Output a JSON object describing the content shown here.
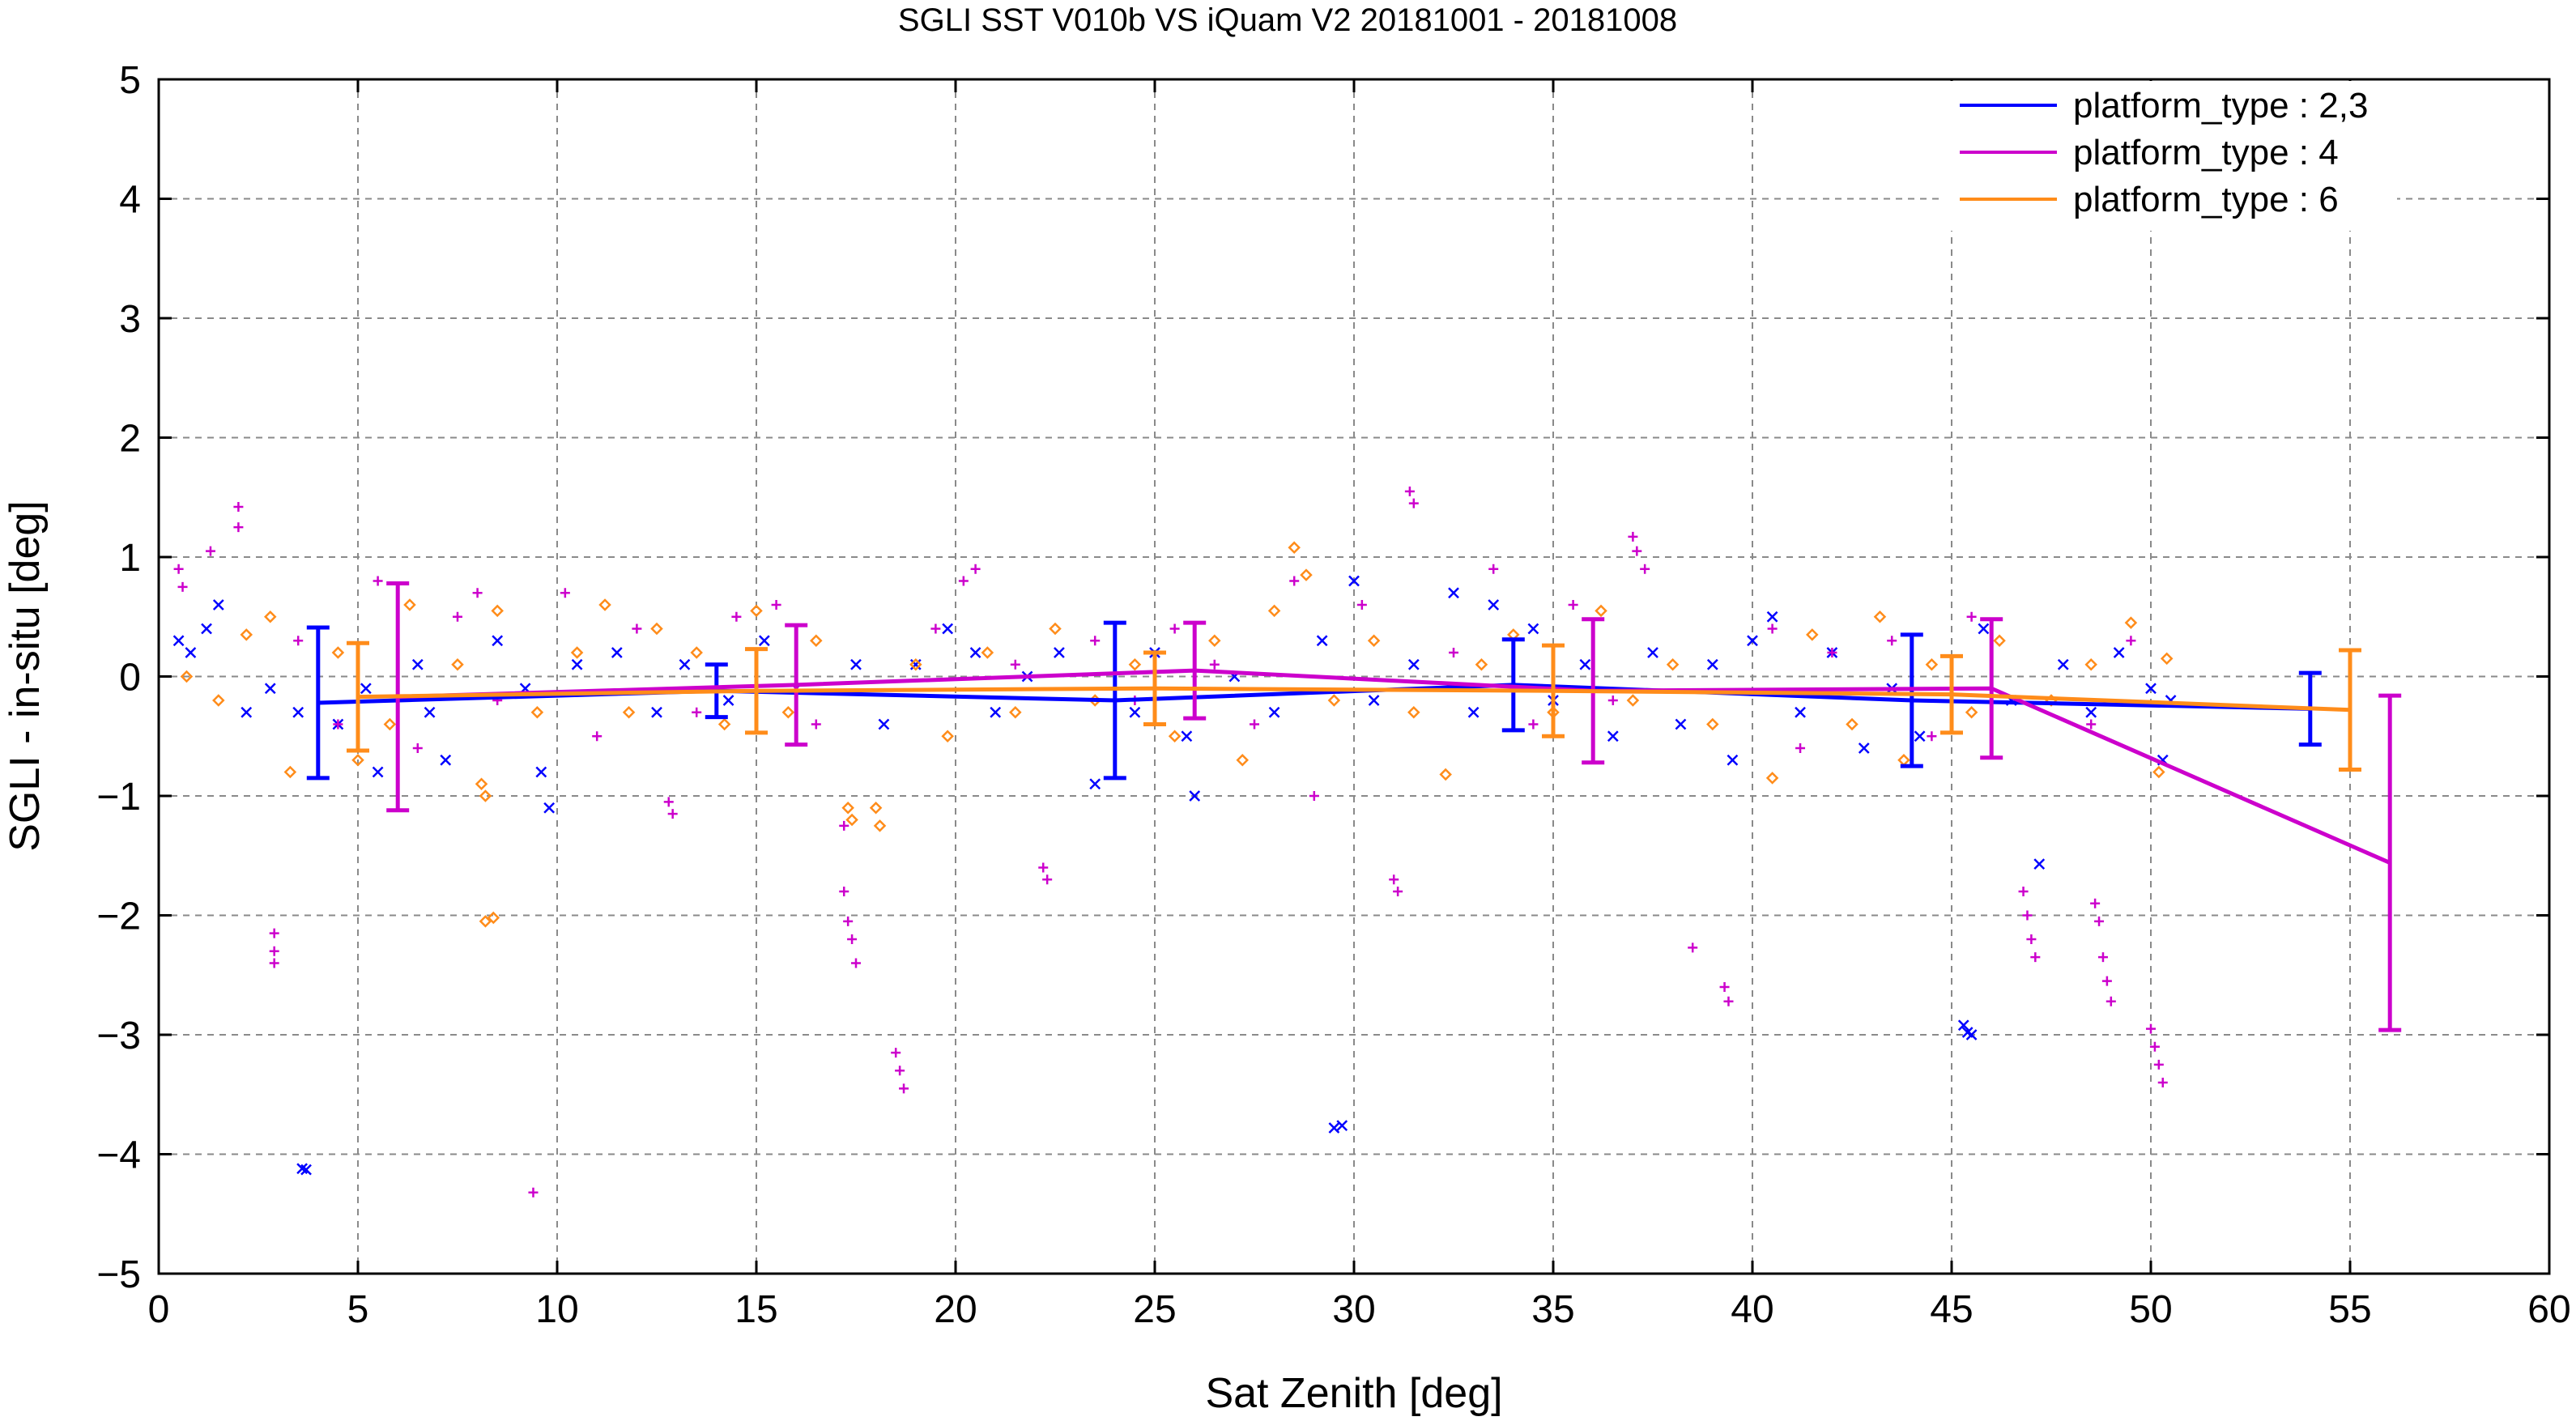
{
  "chart_data": {
    "type": "scatter",
    "title": "SGLI SST V010b VS iQuam V2 20181001 - 20181008",
    "xlabel": "Sat Zenith [deg]",
    "ylabel": "SGLI - in-situ [deg]",
    "xlim": [
      0,
      60
    ],
    "ylim": [
      -5,
      5
    ],
    "x_ticks": [
      "0",
      "5",
      "10",
      "15",
      "20",
      "25",
      "30",
      "35",
      "40",
      "45",
      "50",
      "55",
      "60"
    ],
    "y_ticks": [
      "5",
      "4",
      "3",
      "2",
      "1",
      "0",
      "−1",
      "−2",
      "−3",
      "−4",
      "−5"
    ],
    "grid": true,
    "legend_position": "top-right",
    "series": [
      {
        "name": "platform_type : 2,3",
        "color": "#0000ff",
        "marker": "x",
        "mean_line": {
          "x": [
            4,
            14,
            24,
            34,
            44,
            54
          ],
          "y": [
            -0.22,
            -0.12,
            -0.2,
            -0.07,
            -0.2,
            -0.27
          ],
          "err": [
            0.63,
            0.22,
            0.65,
            0.38,
            0.55,
            0.3
          ]
        },
        "points": [
          [
            0.5,
            0.3
          ],
          [
            0.8,
            0.2
          ],
          [
            1.2,
            0.4
          ],
          [
            1.5,
            0.6
          ],
          [
            2.2,
            -0.3
          ],
          [
            2.8,
            -0.1
          ],
          [
            3.5,
            -0.3
          ],
          [
            3.6,
            -4.12
          ],
          [
            3.7,
            -4.13
          ],
          [
            4.5,
            -0.4
          ],
          [
            5.2,
            -0.1
          ],
          [
            5.5,
            -0.8
          ],
          [
            6.5,
            0.1
          ],
          [
            6.8,
            -0.3
          ],
          [
            7.2,
            -0.7
          ],
          [
            8.5,
            0.3
          ],
          [
            9.2,
            -0.1
          ],
          [
            9.6,
            -0.8
          ],
          [
            9.8,
            -1.1
          ],
          [
            10.5,
            0.1
          ],
          [
            11.5,
            0.2
          ],
          [
            12.5,
            -0.3
          ],
          [
            13.2,
            0.1
          ],
          [
            14.3,
            -0.2
          ],
          [
            15.2,
            0.3
          ],
          [
            16.0,
            -0.1
          ],
          [
            17.5,
            0.1
          ],
          [
            18.2,
            -0.4
          ],
          [
            19.0,
            0.1
          ],
          [
            19.8,
            0.4
          ],
          [
            20.5,
            0.2
          ],
          [
            21.0,
            -0.3
          ],
          [
            21.8,
            0.0
          ],
          [
            22.6,
            0.2
          ],
          [
            23.5,
            -0.9
          ],
          [
            24.5,
            -0.3
          ],
          [
            25.0,
            0.2
          ],
          [
            25.8,
            -0.5
          ],
          [
            26.0,
            -1.0
          ],
          [
            27.0,
            0.0
          ],
          [
            28.0,
            -0.3
          ],
          [
            29.5,
            -3.78
          ],
          [
            29.7,
            -3.76
          ],
          [
            29.2,
            0.3
          ],
          [
            30.0,
            0.8
          ],
          [
            30.5,
            -0.2
          ],
          [
            31.5,
            0.1
          ],
          [
            32.5,
            0.7
          ],
          [
            33.0,
            -0.3
          ],
          [
            33.5,
            0.6
          ],
          [
            34.5,
            0.4
          ],
          [
            35.0,
            -0.2
          ],
          [
            35.8,
            0.1
          ],
          [
            36.5,
            -0.5
          ],
          [
            37.5,
            0.2
          ],
          [
            38.2,
            -0.4
          ],
          [
            39.0,
            0.1
          ],
          [
            39.5,
            -0.7
          ],
          [
            40.0,
            0.3
          ],
          [
            40.5,
            0.5
          ],
          [
            41.2,
            -0.3
          ],
          [
            42.0,
            0.2
          ],
          [
            42.8,
            -0.6
          ],
          [
            43.5,
            -0.1
          ],
          [
            44.2,
            -0.5
          ],
          [
            45.3,
            -2.92
          ],
          [
            45.4,
            -2.98
          ],
          [
            45.5,
            -3.0
          ],
          [
            45.8,
            0.4
          ],
          [
            46.5,
            -0.2
          ],
          [
            47.2,
            -1.57
          ],
          [
            47.8,
            0.1
          ],
          [
            48.5,
            -0.3
          ],
          [
            49.2,
            0.2
          ],
          [
            50.0,
            -0.1
          ],
          [
            50.3,
            -0.7
          ],
          [
            50.5,
            -0.2
          ]
        ]
      },
      {
        "name": "platform_type : 4",
        "color": "#cc00cc",
        "marker": "+",
        "mean_line": {
          "x": [
            6,
            16,
            26,
            36,
            46,
            56
          ],
          "y": [
            -0.17,
            -0.07,
            0.05,
            -0.12,
            -0.1,
            -1.56
          ],
          "err": [
            0.95,
            0.5,
            0.4,
            0.6,
            0.58,
            1.4
          ]
        },
        "points": [
          [
            0.5,
            0.9
          ],
          [
            0.6,
            0.75
          ],
          [
            1.3,
            1.05
          ],
          [
            2.0,
            1.42
          ],
          [
            2.0,
            1.25
          ],
          [
            2.9,
            -2.15
          ],
          [
            2.9,
            -2.3
          ],
          [
            2.9,
            -2.4
          ],
          [
            3.5,
            0.3
          ],
          [
            4.5,
            -0.4
          ],
          [
            5.5,
            0.8
          ],
          [
            6.5,
            -0.6
          ],
          [
            7.5,
            0.5
          ],
          [
            8.0,
            0.7
          ],
          [
            8.5,
            -0.2
          ],
          [
            9.4,
            -4.32
          ],
          [
            10.2,
            0.7
          ],
          [
            11.0,
            -0.5
          ],
          [
            12.0,
            0.4
          ],
          [
            12.8,
            -1.05
          ],
          [
            12.9,
            -1.15
          ],
          [
            13.5,
            -0.3
          ],
          [
            14.5,
            0.5
          ],
          [
            15.5,
            0.6
          ],
          [
            16.5,
            -0.4
          ],
          [
            17.2,
            -1.25
          ],
          [
            17.2,
            -1.8
          ],
          [
            17.3,
            -2.05
          ],
          [
            17.4,
            -2.2
          ],
          [
            17.5,
            -2.4
          ],
          [
            18.5,
            -3.15
          ],
          [
            18.6,
            -3.3
          ],
          [
            18.7,
            -3.45
          ],
          [
            19.5,
            0.4
          ],
          [
            20.2,
            0.8
          ],
          [
            20.5,
            0.9
          ],
          [
            21.5,
            0.1
          ],
          [
            22.2,
            -1.6
          ],
          [
            22.3,
            -1.7
          ],
          [
            23.5,
            0.3
          ],
          [
            24.5,
            -0.2
          ],
          [
            25.5,
            0.4
          ],
          [
            26.5,
            0.1
          ],
          [
            27.5,
            -0.4
          ],
          [
            28.5,
            0.8
          ],
          [
            29.0,
            -1.0
          ],
          [
            30.2,
            0.6
          ],
          [
            31.0,
            -1.7
          ],
          [
            31.1,
            -1.8
          ],
          [
            31.4,
            1.55
          ],
          [
            31.5,
            1.45
          ],
          [
            32.5,
            0.2
          ],
          [
            33.5,
            0.9
          ],
          [
            34.5,
            -0.4
          ],
          [
            35.5,
            0.6
          ],
          [
            36.5,
            -0.2
          ],
          [
            37.0,
            1.17
          ],
          [
            37.1,
            1.05
          ],
          [
            37.3,
            0.9
          ],
          [
            38.5,
            -2.27
          ],
          [
            39.3,
            -2.6
          ],
          [
            39.4,
            -2.72
          ],
          [
            40.5,
            0.4
          ],
          [
            41.2,
            -0.6
          ],
          [
            42.0,
            0.2
          ],
          [
            43.5,
            0.3
          ],
          [
            44.5,
            -0.5
          ],
          [
            45.5,
            0.5
          ],
          [
            46.8,
            -1.8
          ],
          [
            46.9,
            -2.0
          ],
          [
            47.0,
            -2.2
          ],
          [
            47.1,
            -2.35
          ],
          [
            48.5,
            -0.4
          ],
          [
            48.6,
            -1.9
          ],
          [
            48.7,
            -2.05
          ],
          [
            48.8,
            -2.35
          ],
          [
            48.9,
            -2.55
          ],
          [
            49.0,
            -2.72
          ],
          [
            49.5,
            0.3
          ],
          [
            50.0,
            -2.95
          ],
          [
            50.1,
            -3.1
          ],
          [
            50.2,
            -3.25
          ],
          [
            50.3,
            -3.4
          ]
        ]
      },
      {
        "name": "platform_type : 6",
        "color": "#ff8c1a",
        "marker": "diamond",
        "mean_line": {
          "x": [
            5,
            15,
            25,
            35,
            45,
            55
          ],
          "y": [
            -0.17,
            -0.12,
            -0.1,
            -0.12,
            -0.15,
            -0.28
          ],
          "err": [
            0.45,
            0.35,
            0.3,
            0.38,
            0.32,
            0.5
          ]
        },
        "points": [
          [
            0.7,
            0.0
          ],
          [
            1.5,
            -0.2
          ],
          [
            2.2,
            0.35
          ],
          [
            2.8,
            0.5
          ],
          [
            3.3,
            -0.8
          ],
          [
            4.5,
            0.2
          ],
          [
            5.0,
            -0.7
          ],
          [
            5.8,
            -0.4
          ],
          [
            6.3,
            0.6
          ],
          [
            7.5,
            0.1
          ],
          [
            8.1,
            -0.9
          ],
          [
            8.2,
            -1.0
          ],
          [
            8.2,
            -2.05
          ],
          [
            8.4,
            -2.02
          ],
          [
            8.5,
            0.55
          ],
          [
            9.5,
            -0.3
          ],
          [
            10.5,
            0.2
          ],
          [
            11.2,
            0.6
          ],
          [
            11.8,
            -0.3
          ],
          [
            12.5,
            0.4
          ],
          [
            13.5,
            0.2
          ],
          [
            14.2,
            -0.4
          ],
          [
            15.0,
            0.55
          ],
          [
            15.8,
            -0.3
          ],
          [
            16.5,
            0.3
          ],
          [
            17.3,
            -1.1
          ],
          [
            17.4,
            -1.2
          ],
          [
            18.0,
            -1.1
          ],
          [
            18.1,
            -1.25
          ],
          [
            19.0,
            0.1
          ],
          [
            19.8,
            -0.5
          ],
          [
            20.8,
            0.2
          ],
          [
            21.5,
            -0.3
          ],
          [
            22.5,
            0.4
          ],
          [
            23.5,
            -0.2
          ],
          [
            24.5,
            0.1
          ],
          [
            25.5,
            -0.5
          ],
          [
            26.5,
            0.3
          ],
          [
            27.2,
            -0.7
          ],
          [
            28.0,
            0.55
          ],
          [
            28.5,
            1.08
          ],
          [
            28.8,
            0.85
          ],
          [
            29.5,
            -0.2
          ],
          [
            30.5,
            0.3
          ],
          [
            31.5,
            -0.3
          ],
          [
            32.3,
            -0.82
          ],
          [
            33.2,
            0.1
          ],
          [
            34.0,
            0.35
          ],
          [
            35.0,
            -0.3
          ],
          [
            36.2,
            0.55
          ],
          [
            37.0,
            -0.2
          ],
          [
            38.0,
            0.1
          ],
          [
            39.0,
            -0.4
          ],
          [
            40.5,
            -0.85
          ],
          [
            41.5,
            0.35
          ],
          [
            42.5,
            -0.4
          ],
          [
            43.2,
            0.5
          ],
          [
            43.8,
            -0.7
          ],
          [
            44.5,
            0.1
          ],
          [
            45.5,
            -0.3
          ],
          [
            46.2,
            0.3
          ],
          [
            47.5,
            -0.2
          ],
          [
            48.5,
            0.1
          ],
          [
            49.5,
            0.45
          ],
          [
            50.2,
            -0.8
          ],
          [
            50.4,
            0.15
          ]
        ]
      }
    ]
  }
}
